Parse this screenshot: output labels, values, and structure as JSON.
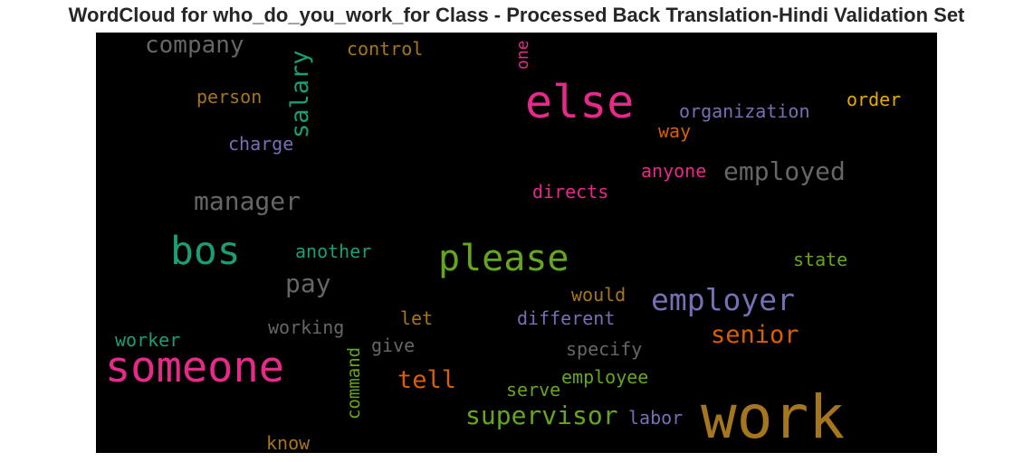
{
  "title": "WordCloud for who_do_you_work_for Class - Processed Back Translation-Hindi Validation Set",
  "words": {
    "work": "work",
    "someone": "someone",
    "else": "else",
    "please": "please",
    "bos": "bos",
    "employer": "employer",
    "supervisor": "supervisor",
    "employed": "employed",
    "manager": "manager",
    "company": "company",
    "salary": "salary",
    "senior": "senior",
    "tell": "tell",
    "pay": "pay",
    "organization": "organization",
    "order": "order",
    "control": "control",
    "person": "person",
    "charge": "charge",
    "way": "way",
    "anyone": "anyone",
    "directs": "directs",
    "another": "another",
    "state": "state",
    "would": "would",
    "different": "different",
    "let": "let",
    "working": "working",
    "worker": "worker",
    "give": "give",
    "specify": "specify",
    "employee": "employee",
    "serve": "serve",
    "labor": "labor",
    "command": "command",
    "know": "know",
    "one": "one"
  },
  "colors": {
    "pink": "#e7298a",
    "gray": "#666666",
    "brown": "#a6761d",
    "green": "#66a61e",
    "teal": "#1b9e77",
    "purple": "#7570b3",
    "orange": "#d95f02",
    "yellow": "#e6ab02",
    "background": "#000000"
  }
}
